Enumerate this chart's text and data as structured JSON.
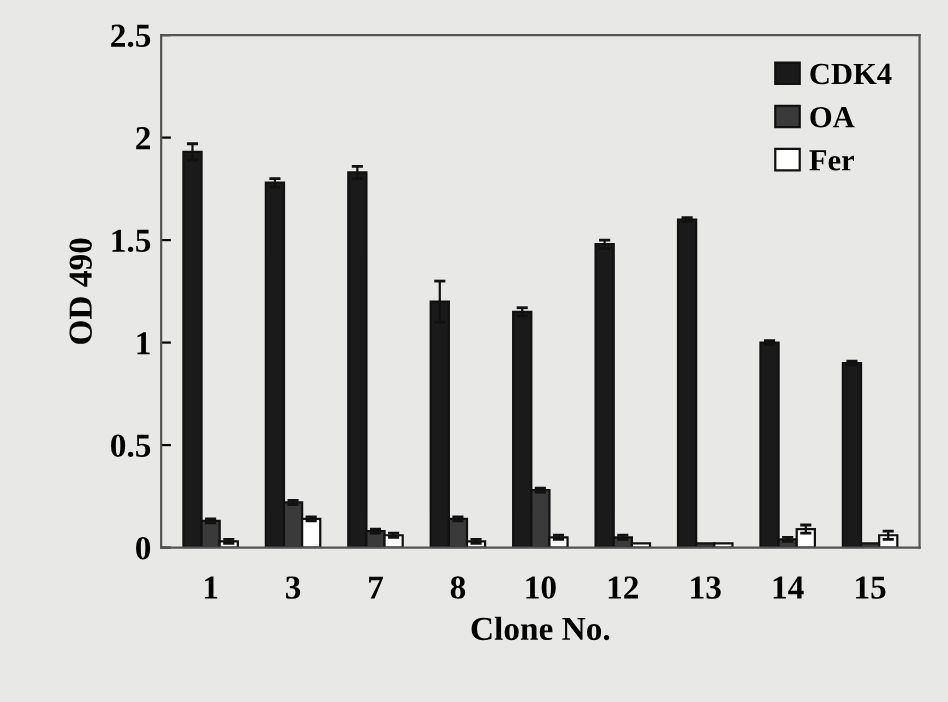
{
  "chart_data": {
    "type": "bar",
    "xlabel": "Clone No.",
    "ylabel": "OD 490",
    "categories": [
      "1",
      "3",
      "7",
      "8",
      "10",
      "12",
      "13",
      "14",
      "15"
    ],
    "series": [
      {
        "name": "CDK4",
        "color": "#1a1a1a",
        "values": [
          1.93,
          1.78,
          1.83,
          1.2,
          1.15,
          1.48,
          1.6,
          1.0,
          0.9
        ],
        "errors": [
          0.04,
          0.02,
          0.03,
          0.1,
          0.02,
          0.02,
          0.01,
          0.01,
          0.01
        ]
      },
      {
        "name": "OA",
        "color": "#3a3a3a",
        "values": [
          0.13,
          0.22,
          0.08,
          0.14,
          0.28,
          0.05,
          0.02,
          0.04,
          0.02
        ],
        "errors": [
          0.01,
          0.01,
          0.01,
          0.01,
          0.01,
          0.01,
          null,
          0.01,
          null
        ]
      },
      {
        "name": "Fer",
        "color": "#ffffff",
        "values": [
          0.03,
          0.14,
          0.06,
          0.03,
          0.05,
          0.02,
          0.02,
          0.09,
          0.06
        ],
        "errors": [
          0.01,
          0.01,
          0.01,
          0.01,
          0.01,
          null,
          null,
          0.02,
          0.02
        ]
      }
    ],
    "ylim": [
      0,
      2.5
    ],
    "yticks": [
      0,
      0.5,
      1,
      1.5,
      2,
      2.5
    ],
    "grid": false,
    "legend": "top right"
  }
}
